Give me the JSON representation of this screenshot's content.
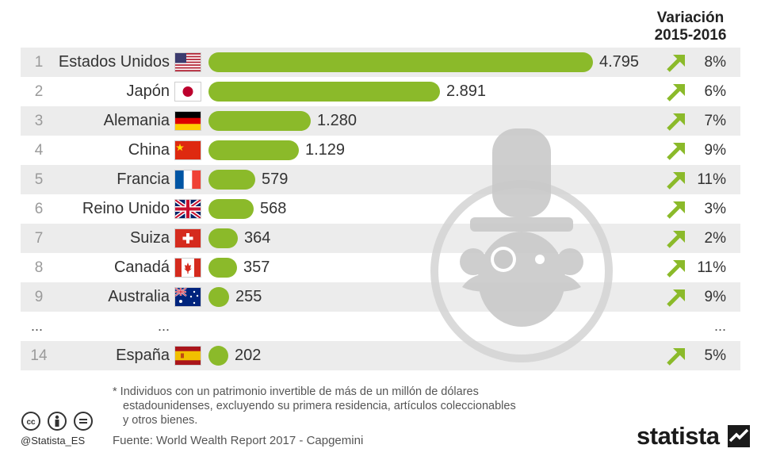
{
  "header": {
    "title_line1": "Variación",
    "title_line2": "2015-2016"
  },
  "chart_data": {
    "type": "bar",
    "orientation": "horizontal",
    "title": "",
    "change_column_title": "Variación 2015-2016",
    "rows": [
      {
        "rank": "1",
        "country": "Estados Unidos",
        "flag": "us-flag",
        "value": 4795,
        "value_label": "4.795",
        "change": "8%"
      },
      {
        "rank": "2",
        "country": "Japón",
        "flag": "jp-flag",
        "value": 2891,
        "value_label": "2.891",
        "change": "6%"
      },
      {
        "rank": "3",
        "country": "Alemania",
        "flag": "de-flag",
        "value": 1280,
        "value_label": "1.280",
        "change": "7%"
      },
      {
        "rank": "4",
        "country": "China",
        "flag": "cn-flag",
        "value": 1129,
        "value_label": "1.129",
        "change": "9%"
      },
      {
        "rank": "5",
        "country": "Francia",
        "flag": "fr-flag",
        "value": 579,
        "value_label": "579",
        "change": "11%"
      },
      {
        "rank": "6",
        "country": "Reino Unido",
        "flag": "gb-flag",
        "value": 568,
        "value_label": "568",
        "change": "3%"
      },
      {
        "rank": "7",
        "country": "Suiza",
        "flag": "ch-flag",
        "value": 364,
        "value_label": "364",
        "change": "2%"
      },
      {
        "rank": "8",
        "country": "Canadá",
        "flag": "ca-flag",
        "value": 357,
        "value_label": "357",
        "change": "11%"
      },
      {
        "rank": "9",
        "country": "Australia",
        "flag": "au-flag",
        "value": 255,
        "value_label": "255",
        "change": "9%"
      },
      {
        "rank": "...",
        "country": "...",
        "ellipsis": true,
        "change": "..."
      },
      {
        "rank": "14",
        "country": "España",
        "flag": "es-flag",
        "value": 202,
        "value_label": "202",
        "change": "5%"
      }
    ],
    "max_value": 4795,
    "bar_color": "#8bba2a",
    "arrow_color": "#8bba2a"
  },
  "footnote": {
    "line1": "* Individuos con un patrimonio invertible de más de un millón de dólares",
    "line2": "estadounidenses, excluyendo su primera residencia, artículos coleccionables",
    "line3": "y otros bienes."
  },
  "source": "Fuente: World Wealth Report 2017 - Capgemini",
  "handle": "@Statista_ES",
  "brand": "statista"
}
